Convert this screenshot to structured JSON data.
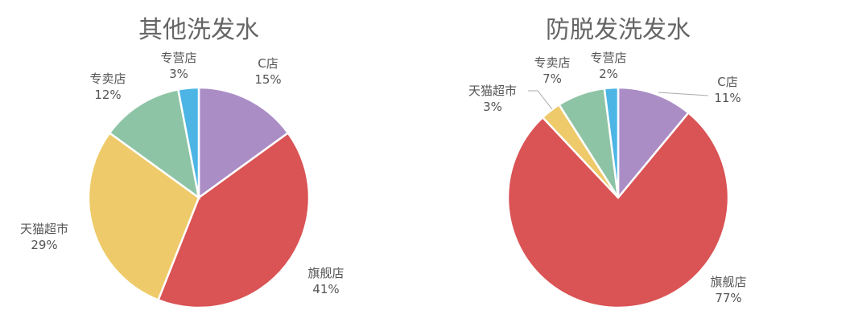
{
  "colors": {
    "C店": "#AB8DC6",
    "旗舰店": "#DA5355",
    "天猫超市": "#EECA6A",
    "专卖店": "#8EC4A6",
    "专营店": "#4CB5E5"
  },
  "chart_data": [
    {
      "type": "pie",
      "title": "其他洗发水",
      "start_angle_deg": 0,
      "direction": "clockwise",
      "slices": [
        {
          "label": "C店",
          "value": 15,
          "percent_label": "15%",
          "color": "#AB8DC6"
        },
        {
          "label": "旗舰店",
          "value": 41,
          "percent_label": "41%",
          "color": "#DA5355"
        },
        {
          "label": "天猫超市",
          "value": 29,
          "percent_label": "29%",
          "color": "#EECA6A"
        },
        {
          "label": "专卖店",
          "value": 12,
          "percent_label": "12%",
          "color": "#8EC4A6"
        },
        {
          "label": "专营店",
          "value": 3,
          "percent_label": "3%",
          "color": "#4CB5E5"
        }
      ]
    },
    {
      "type": "pie",
      "title": "防脱发洗发水",
      "start_angle_deg": 0,
      "direction": "clockwise",
      "slices": [
        {
          "label": "C店",
          "value": 11,
          "percent_label": "11%",
          "color": "#AB8DC6"
        },
        {
          "label": "旗舰店",
          "value": 77,
          "percent_label": "77%",
          "color": "#DA5355"
        },
        {
          "label": "天猫超市",
          "value": 3,
          "percent_label": "3%",
          "color": "#EECA6A"
        },
        {
          "label": "专卖店",
          "value": 7,
          "percent_label": "7%",
          "color": "#8EC4A6"
        },
        {
          "label": "专营店",
          "value": 2,
          "percent_label": "2%",
          "color": "#4CB5E5"
        }
      ]
    }
  ]
}
